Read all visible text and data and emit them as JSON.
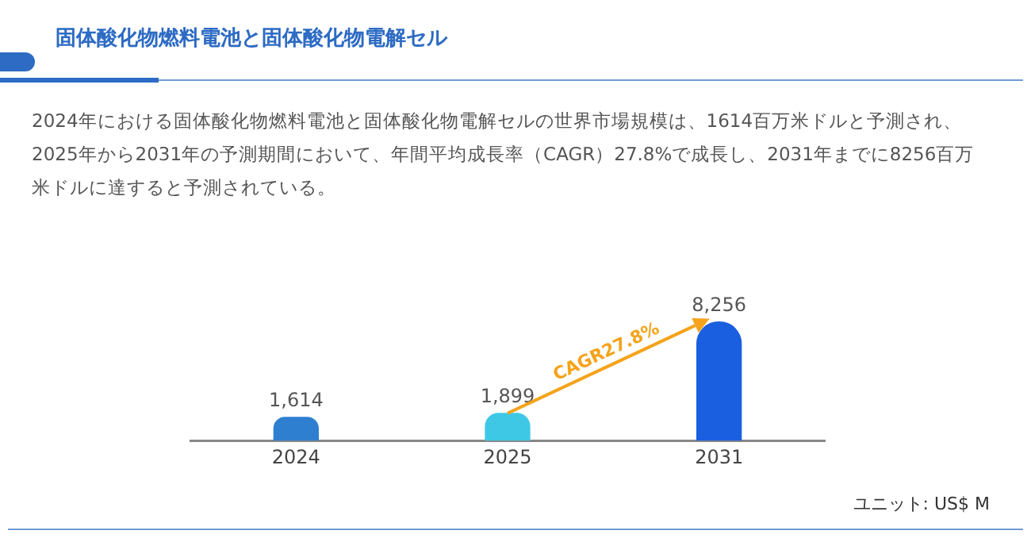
{
  "chart_data": {
    "type": "bar",
    "title": "固体酸化物燃料電池と固体酸化物電解セル",
    "subtitle": "2024年における固体酸化物燃料電池と固体酸化物電解セルの世界市場規模は、1614百万米ドルと予測され、2025年から2031年の予測期間において、年間平均成長率（CAGR）27.8%で成長し、2031年までに8256百万米ドルに達すると予測されている。",
    "categories": [
      "2024",
      "2025",
      "2031"
    ],
    "values": [
      1614,
      1899,
      8256
    ],
    "value_labels": [
      "1,614",
      "1,899",
      "8,256"
    ],
    "colors": [
      "#2f7fd0",
      "#3ec8e6",
      "#1a5fe0"
    ],
    "annotations": [
      "CAGR27.8%",
      "ユニット: US$ M"
    ],
    "grid": false,
    "legend": false,
    "tick_labels": "x"
  }
}
